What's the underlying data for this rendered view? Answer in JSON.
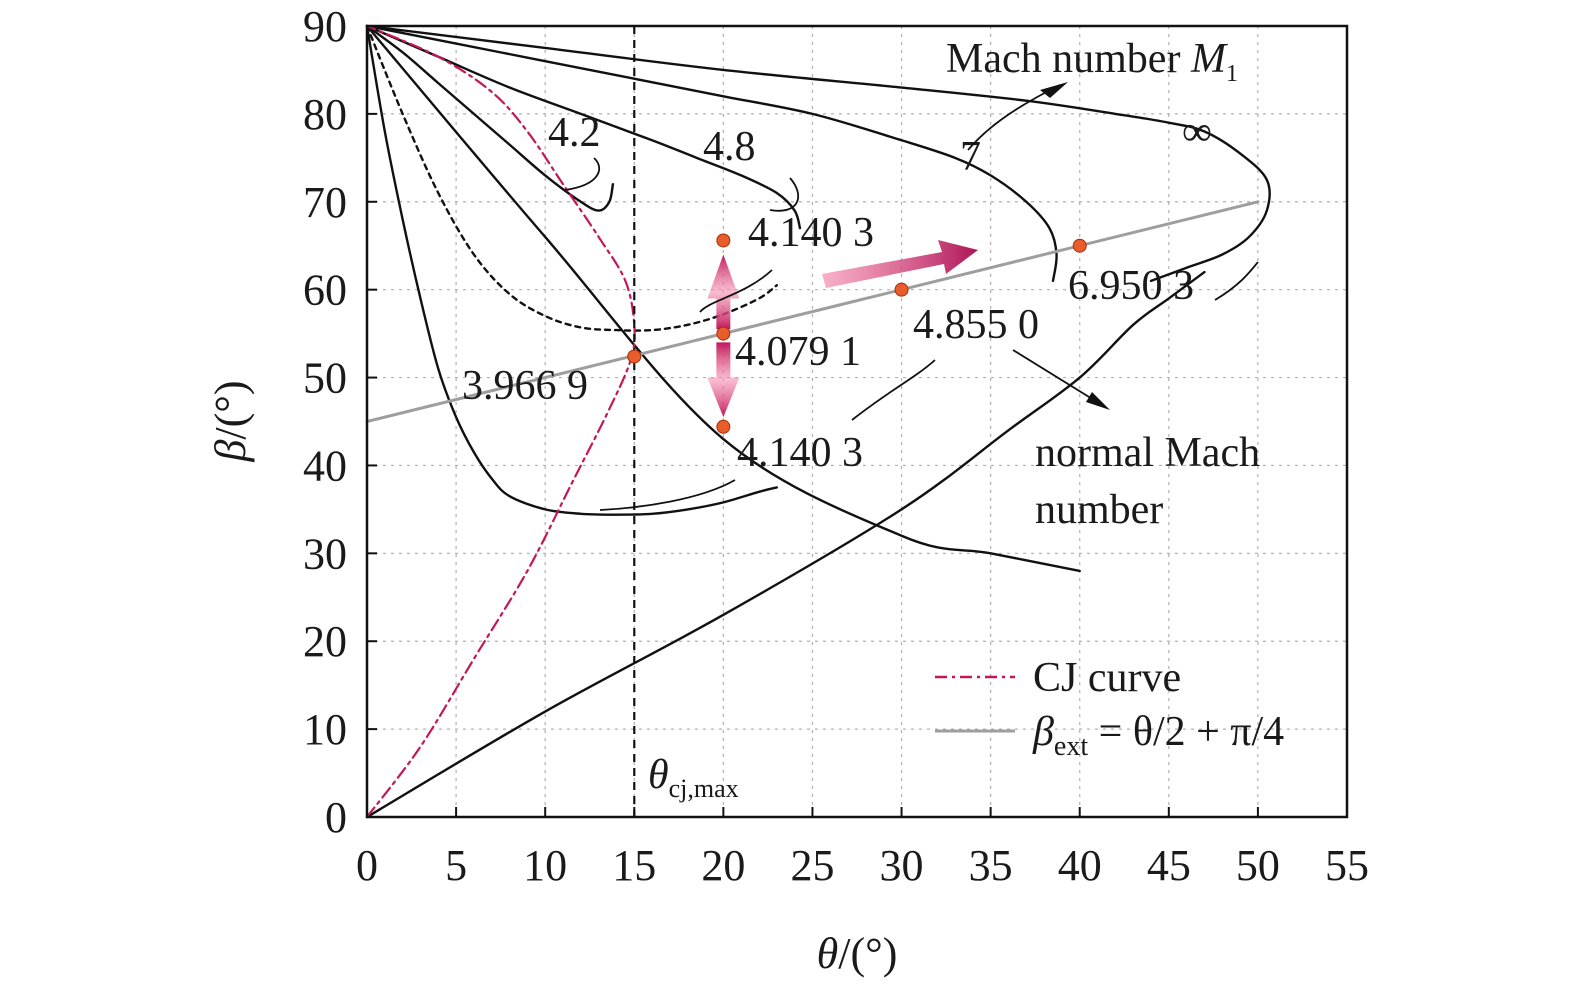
{
  "chart_data": {
    "type": "line",
    "xlabel": "θ/(°)",
    "ylabel": "β/(°)",
    "xlim": [
      0,
      55
    ],
    "ylim": [
      0,
      90
    ],
    "xticks": [
      0,
      5,
      10,
      15,
      20,
      25,
      30,
      35,
      40,
      45,
      50,
      55
    ],
    "yticks": [
      0,
      10,
      20,
      30,
      40,
      50,
      60,
      70,
      80,
      90
    ],
    "grid": true,
    "legend_position": "bottom-right",
    "legend": [
      {
        "label": "CJ curve",
        "style": "dash-dot",
        "color": "#c2185b"
      },
      {
        "label_main": "β",
        "label_sub": "ext",
        "label_rest": " = θ/2 + π/4",
        "style": "solid",
        "color": "#9e9e9e"
      }
    ],
    "series": [
      {
        "type": "weak-shock-polar",
        "label": "4.2",
        "points": [
          [
            0,
            90
          ],
          [
            2,
            87
          ],
          [
            4,
            83.5
          ],
          [
            6,
            80
          ],
          [
            8,
            76.5
          ],
          [
            10,
            73
          ],
          [
            12,
            70
          ],
          [
            13,
            69
          ],
          [
            13.6,
            70
          ],
          [
            13.8,
            72
          ]
        ]
      },
      {
        "type": "weak-shock-polar",
        "label": "4.8",
        "points": [
          [
            0,
            90
          ],
          [
            4,
            86.5
          ],
          [
            8,
            83
          ],
          [
            12,
            80
          ],
          [
            16,
            77
          ],
          [
            18.5,
            75
          ],
          [
            21,
            73
          ],
          [
            23,
            71
          ],
          [
            24,
            69
          ],
          [
            24.3,
            67
          ]
        ]
      },
      {
        "type": "weak-shock-polar",
        "label": "7",
        "points": [
          [
            0,
            90
          ],
          [
            5,
            88
          ],
          [
            10,
            86
          ],
          [
            15,
            84
          ],
          [
            20,
            82
          ],
          [
            25,
            80
          ],
          [
            30,
            77
          ],
          [
            33,
            75
          ],
          [
            35,
            73
          ],
          [
            37,
            70
          ],
          [
            38.3,
            67
          ],
          [
            38.7,
            64
          ],
          [
            38.5,
            61
          ]
        ]
      },
      {
        "type": "weak-shock-polar",
        "label": "∞",
        "points": [
          [
            0,
            90
          ],
          [
            10,
            87.5
          ],
          [
            20,
            85
          ],
          [
            30,
            83
          ],
          [
            37,
            81.5
          ],
          [
            42,
            80
          ],
          [
            45,
            79
          ],
          [
            47,
            78
          ],
          [
            49,
            75.5
          ],
          [
            50.5,
            72.5
          ],
          [
            50.5,
            69
          ],
          [
            49.5,
            66
          ],
          [
            48,
            64
          ],
          [
            46,
            62.5
          ],
          [
            44,
            61
          ]
        ]
      },
      {
        "type": "strong-shock-polar",
        "label": "4.140 3",
        "points": [
          [
            0,
            90
          ],
          [
            2,
            80
          ],
          [
            4,
            71
          ],
          [
            6,
            64
          ],
          [
            8,
            59.5
          ],
          [
            10,
            57
          ],
          [
            12,
            55.7
          ],
          [
            14,
            55.4
          ],
          [
            16,
            55.4
          ],
          [
            18,
            56
          ],
          [
            20,
            57.2
          ],
          [
            22,
            59
          ],
          [
            23,
            60.5
          ]
        ]
      },
      {
        "type": "weak-shock-polar",
        "label": "4.140 3",
        "points": [
          [
            0,
            90
          ],
          [
            1,
            78
          ],
          [
            2,
            68
          ],
          [
            3,
            59
          ],
          [
            4,
            51
          ],
          [
            5,
            45.5
          ],
          [
            6,
            41.5
          ],
          [
            7,
            38.5
          ],
          [
            8,
            36.5
          ],
          [
            10,
            35
          ],
          [
            12,
            34.5
          ],
          [
            14,
            34.4
          ],
          [
            16,
            34.5
          ],
          [
            18,
            35
          ],
          [
            20,
            35.8
          ],
          [
            22,
            37
          ],
          [
            23,
            37.5
          ]
        ]
      },
      {
        "type": "max-deflection-line",
        "label": "4.855 0",
        "points": [
          [
            0,
            90
          ],
          [
            10,
            66
          ],
          [
            20,
            43
          ],
          [
            30,
            32
          ],
          [
            35,
            30
          ],
          [
            40,
            28
          ]
        ]
      },
      {
        "type": "strong-shock-polar",
        "label": "6.950 3",
        "points": [
          [
            0,
            0
          ],
          [
            10,
            12
          ],
          [
            20,
            23
          ],
          [
            30,
            35
          ],
          [
            36,
            44
          ],
          [
            40,
            50
          ],
          [
            43,
            56
          ],
          [
            45,
            59
          ],
          [
            47,
            62
          ]
        ]
      },
      {
        "type": "CJ curve",
        "label": "CJ curve",
        "points": [
          [
            0,
            0
          ],
          [
            3,
            8
          ],
          [
            6,
            18
          ],
          [
            9,
            28
          ],
          [
            11.5,
            38
          ],
          [
            13.5,
            46
          ],
          [
            14.8,
            52
          ],
          [
            15,
            56
          ],
          [
            14.5,
            61
          ],
          [
            13,
            66
          ],
          [
            11,
            72
          ],
          [
            9,
            78
          ],
          [
            7,
            82.5
          ],
          [
            4,
            86.5
          ],
          [
            0,
            90
          ]
        ]
      },
      {
        "type": "β_ext",
        "label": "β_ext = θ/2 + π/4",
        "points": [
          [
            0,
            45
          ],
          [
            15,
            52.5
          ],
          [
            20,
            55
          ],
          [
            30,
            60
          ],
          [
            40,
            65
          ],
          [
            50,
            70
          ]
        ]
      }
    ],
    "markers": [
      {
        "x": 15,
        "y": 52.4,
        "label": "3.966 9"
      },
      {
        "x": 20,
        "y": 65.6,
        "label": "4.140 3"
      },
      {
        "x": 20,
        "y": 55,
        "label": "4.079 1"
      },
      {
        "x": 20,
        "y": 44.4,
        "label": "4.140 3"
      },
      {
        "x": 30,
        "y": 60,
        "label": "4.855 0"
      },
      {
        "x": 40,
        "y": 65,
        "label": "6.950 3"
      }
    ],
    "vertical_line": {
      "x": 15,
      "label_main": "θ",
      "label_sub": "cj,max"
    },
    "annotations": {
      "mach_number_label_main": "Mach number ",
      "mach_number_label_sym": "M",
      "mach_number_label_sub": "1",
      "polar_label_42": "4.2",
      "polar_label_48": "4.8",
      "polar_label_7": "7",
      "polar_label_inf": "∞",
      "normal_mach_line1": "normal Mach",
      "normal_mach_line2": "number",
      "marker_label_1": "3.966 9",
      "marker_label_2": "4.140 3",
      "marker_label_3": "4.079 1",
      "marker_label_4": "4.140 3",
      "marker_label_5": "4.855 0",
      "marker_label_6": "6.950 3"
    },
    "colors": {
      "curve": "#111111",
      "cj": "#c2185b",
      "beta_ext": "#9e9e9e",
      "marker": "#e85d2a",
      "arrow": "#b8235a",
      "grid": "#b0b0b0"
    }
  }
}
